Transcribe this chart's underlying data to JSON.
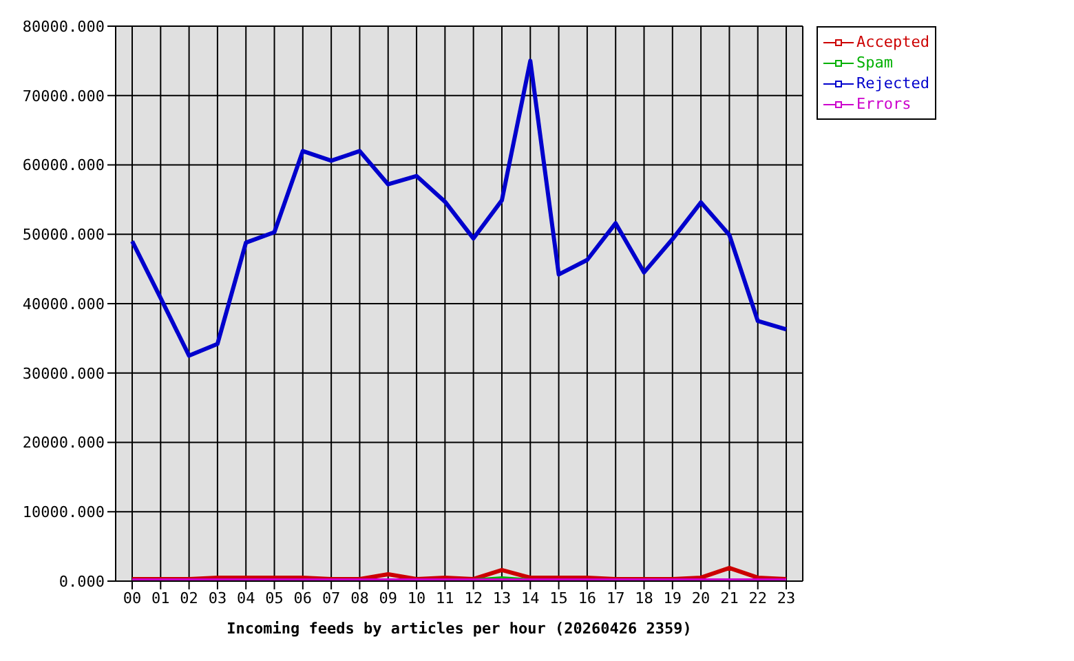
{
  "chart_data": {
    "type": "line",
    "xlabel": "Incoming feeds by articles per hour (20260426 2359)",
    "categories": [
      "00",
      "01",
      "02",
      "03",
      "04",
      "05",
      "06",
      "07",
      "08",
      "09",
      "10",
      "11",
      "12",
      "13",
      "14",
      "15",
      "16",
      "17",
      "18",
      "19",
      "20",
      "21",
      "22",
      "23"
    ],
    "series": [
      {
        "name": "Accepted",
        "color": "#cc0000",
        "values": [
          300,
          300,
          300,
          500,
          500,
          500,
          500,
          300,
          300,
          1000,
          300,
          500,
          300,
          1600,
          500,
          500,
          500,
          300,
          300,
          300,
          500,
          1900,
          500,
          300
        ]
      },
      {
        "name": "Spam",
        "color": "#00b000",
        "values": [
          null,
          null,
          null,
          null,
          null,
          null,
          null,
          null,
          null,
          null,
          null,
          null,
          100,
          400,
          100,
          null,
          null,
          null,
          null,
          null,
          null,
          null,
          null,
          null
        ]
      },
      {
        "name": "Rejected",
        "color": "#0000cc",
        "values": [
          49000,
          40800,
          32500,
          34200,
          48800,
          50300,
          62000,
          60600,
          62000,
          57200,
          58400,
          54700,
          49400,
          54900,
          75000,
          44200,
          46300,
          51600,
          44500,
          49300,
          54600,
          49900,
          37500,
          36300
        ]
      },
      {
        "name": "Errors",
        "color": "#cc00cc",
        "values": [
          100,
          100,
          100,
          100,
          100,
          100,
          100,
          100,
          100,
          100,
          100,
          100,
          100,
          100,
          100,
          100,
          100,
          100,
          100,
          100,
          100,
          100,
          100,
          100
        ]
      }
    ],
    "ylim": [
      0,
      80000
    ],
    "yticks": [
      {
        "value": 0,
        "label": "0.000"
      },
      {
        "value": 10000,
        "label": "10000.000"
      },
      {
        "value": 20000,
        "label": "20000.000"
      },
      {
        "value": 30000,
        "label": "30000.000"
      },
      {
        "value": 40000,
        "label": "40000.000"
      },
      {
        "value": 50000,
        "label": "50000.000"
      },
      {
        "value": 60000,
        "label": "60000.000"
      },
      {
        "value": 70000,
        "label": "70000.000"
      },
      {
        "value": 80000,
        "label": "80000.000"
      }
    ],
    "grid": true,
    "legend": "top right"
  }
}
